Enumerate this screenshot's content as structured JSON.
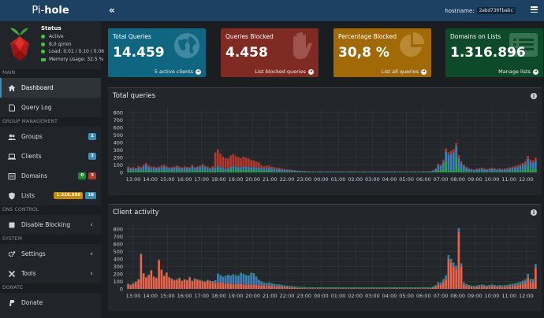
{
  "brand": {
    "prefix": "Pi-",
    "name": "hole"
  },
  "status": {
    "title": "Status",
    "active": "Active",
    "rate": "8,0 q/min",
    "load": "Load: 0.01 / 0.10 / 0.06",
    "memory": "Memory usage: 32.5 %"
  },
  "header": {
    "hostname_label": "hostname:",
    "hostname_value": "2abd730fbabc",
    "toggle_icon": "«"
  },
  "nav": {
    "main_header": "MAIN",
    "dashboard": "Dashboard",
    "query_log": "Query Log",
    "group_header": "GROUP MANAGEMENT",
    "groups": "Groups",
    "groups_badge": "1",
    "clients": "Clients",
    "clients_badge": "3",
    "domains": "Domains",
    "domains_badge_a": "0",
    "domains_badge_b": "3",
    "lists": "Lists",
    "lists_badge_a": "1.316.896",
    "lists_badge_b": "18",
    "dns_header": "DNS CONTROL",
    "disable_blocking": "Disable Blocking",
    "system_header": "SYSTEM",
    "settings": "Settings",
    "tools": "Tools",
    "donate_header": "DONATE",
    "donate": "Donate"
  },
  "tiles": [
    {
      "title": "Total Queries",
      "value": "14.459",
      "link": "5 active clients",
      "color": "#0f6680",
      "icon": "globe-icon"
    },
    {
      "title": "Queries Blocked",
      "value": "4.458",
      "link": "List blocked queries",
      "color": "#7f2a23",
      "icon": "hand-icon"
    },
    {
      "title": "Percentage Blocked",
      "value": "30,8 %",
      "link": "List all queries",
      "color": "#a16a07",
      "icon": "pie-chart-icon"
    },
    {
      "title": "Domains on Lists",
      "value": "1.316.896",
      "link": "Manage lists",
      "color": "#0c4a29",
      "icon": "list-icon"
    }
  ],
  "colors": {
    "green": "#2aa754",
    "blue": "#3d7eb8",
    "red": "#b3382c",
    "orange": "#e8644a",
    "grid": "#34393e"
  },
  "chart_data": [
    {
      "type": "bar",
      "title": "Total queries",
      "stacked": true,
      "yticks": [
        0,
        100,
        200,
        300,
        400,
        500,
        600,
        700,
        800
      ],
      "ylim": [
        0,
        850
      ],
      "xticks": [
        "13:00",
        "14:00",
        "15:00",
        "16:00",
        "17:00",
        "18:00",
        "19:00",
        "20:00",
        "21:00",
        "22:00",
        "23:00",
        "00:00",
        "01:00",
        "02:00",
        "03:00",
        "04:00",
        "05:00",
        "06:00",
        "07:00",
        "08:00",
        "09:00",
        "10:00",
        "11:00",
        "12:00"
      ],
      "series": [
        {
          "values": [
            30,
            25,
            22,
            20,
            28,
            24,
            22,
            30,
            25,
            20,
            22,
            18,
            20,
            25,
            30,
            22,
            18,
            20,
            22,
            25,
            20,
            18,
            22,
            20,
            18,
            30,
            20,
            22,
            25,
            30,
            28,
            25,
            20,
            22,
            35,
            60,
            30,
            25,
            20,
            30,
            40,
            45,
            38,
            36,
            35,
            40,
            38,
            35,
            30,
            32,
            28,
            30,
            25,
            22,
            28,
            26,
            20,
            18,
            15,
            15,
            12,
            12,
            10,
            10,
            8,
            8,
            6,
            6,
            6,
            5,
            5,
            5,
            4,
            4,
            5,
            5,
            4,
            4,
            4,
            5,
            4,
            4,
            4,
            4,
            4,
            4,
            4,
            4,
            4,
            4,
            4,
            4,
            5,
            4,
            4,
            4,
            5,
            4,
            4,
            5,
            4,
            4,
            4,
            4,
            5,
            4,
            4,
            4,
            4,
            5,
            4,
            4,
            5,
            4,
            4,
            5,
            5,
            5,
            6,
            8,
            15,
            35,
            30,
            45,
            150,
            30,
            35,
            30,
            210,
            60,
            30,
            25,
            18,
            14,
            12,
            10,
            12,
            14,
            15,
            12,
            10,
            12,
            14,
            12,
            10,
            12,
            10,
            12,
            14,
            16,
            18,
            20,
            22,
            25,
            30,
            35,
            80,
            45,
            40,
            55
          ]
        },
        {
          "values": [
            30,
            25,
            30,
            25,
            35,
            30,
            60,
            70,
            45,
            40,
            40,
            35,
            40,
            45,
            50,
            40,
            35,
            35,
            40,
            45,
            40,
            35,
            40,
            38,
            35,
            50,
            35,
            40,
            45,
            60,
            40,
            35,
            30,
            40,
            30,
            25,
            40,
            35,
            30,
            25,
            35,
            40,
            38,
            36,
            35,
            40,
            38,
            40,
            35,
            38,
            35,
            35,
            30,
            30,
            32,
            34,
            30,
            30,
            28,
            28,
            24,
            22,
            20,
            20,
            18,
            16,
            14,
            12,
            10,
            10,
            9,
            8,
            8,
            8,
            8,
            8,
            7,
            7,
            7,
            8,
            7,
            7,
            7,
            7,
            7,
            7,
            7,
            7,
            7,
            7,
            7,
            7,
            8,
            7,
            7,
            7,
            8,
            7,
            7,
            8,
            7,
            7,
            7,
            7,
            8,
            7,
            7,
            7,
            7,
            8,
            7,
            7,
            8,
            7,
            7,
            8,
            8,
            8,
            10,
            15,
            30,
            60,
            55,
            90,
            130,
            200,
            210,
            240,
            140,
            130,
            90,
            60,
            40,
            30,
            25,
            20,
            25,
            30,
            35,
            30,
            25,
            30,
            35,
            30,
            25,
            30,
            25,
            28,
            30,
            35,
            40,
            45,
            50,
            60,
            70,
            80,
            100,
            90,
            85,
            100
          ]
        },
        {
          "values": [
            20,
            15,
            18,
            16,
            20,
            18,
            20,
            25,
            20,
            18,
            18,
            16,
            18,
            20,
            22,
            18,
            15,
            16,
            18,
            20,
            18,
            16,
            18,
            17,
            16,
            20,
            16,
            18,
            20,
            22,
            20,
            18,
            15,
            20,
            200,
            220,
            180,
            150,
            140,
            130,
            150,
            160,
            140,
            130,
            120,
            130,
            120,
            110,
            100,
            90,
            80,
            70,
            40,
            30,
            30,
            28,
            25,
            22,
            20,
            18,
            15,
            12,
            10,
            9,
            8,
            7,
            6,
            5,
            4,
            4,
            3,
            3,
            3,
            3,
            3,
            3,
            3,
            3,
            3,
            3,
            3,
            3,
            3,
            3,
            3,
            3,
            3,
            3,
            3,
            3,
            3,
            3,
            3,
            3,
            3,
            3,
            3,
            3,
            3,
            3,
            3,
            3,
            3,
            3,
            3,
            3,
            3,
            3,
            3,
            3,
            3,
            3,
            3,
            3,
            3,
            3,
            3,
            3,
            4,
            6,
            10,
            20,
            20,
            30,
            40,
            40,
            40,
            40,
            40,
            40,
            30,
            20,
            15,
            12,
            10,
            8,
            10,
            12,
            14,
            12,
            10,
            12,
            14,
            12,
            10,
            12,
            10,
            12,
            14,
            16,
            18,
            20,
            22,
            25,
            30,
            35,
            40,
            35,
            35,
            40
          ]
        }
      ]
    },
    {
      "type": "bar",
      "title": "Client activity",
      "stacked": true,
      "yticks": [
        0,
        100,
        200,
        300,
        400,
        500,
        600,
        700,
        800
      ],
      "ylim": [
        0,
        850
      ],
      "xticks": [
        "13:00",
        "14:00",
        "15:00",
        "16:00",
        "17:00",
        "18:00",
        "19:00",
        "20:00",
        "21:00",
        "22:00",
        "23:00",
        "00:00",
        "01:00",
        "02:00",
        "03:00",
        "04:00",
        "05:00",
        "06:00",
        "07:00",
        "08:00",
        "09:00",
        "10:00",
        "11:00",
        "12:00"
      ],
      "series": [
        {
          "values": [
            60,
            50,
            70,
            90,
            120,
            460,
            200,
            150,
            180,
            240,
            160,
            140,
            380,
            250,
            170,
            210,
            150,
            130,
            110,
            120,
            140,
            100,
            120,
            110,
            150,
            100,
            130,
            120,
            110,
            100,
            90,
            110,
            100,
            90,
            80,
            80,
            90,
            80,
            70,
            75,
            70,
            65,
            60,
            70,
            65,
            60,
            55,
            60,
            55,
            60,
            55,
            50,
            50,
            45,
            40,
            45,
            40,
            35,
            30,
            30,
            28,
            25,
            22,
            20,
            18,
            16,
            14,
            12,
            10,
            10,
            9,
            8,
            8,
            8,
            8,
            8,
            7,
            7,
            7,
            8,
            7,
            7,
            7,
            7,
            7,
            7,
            7,
            7,
            7,
            7,
            7,
            7,
            8,
            7,
            7,
            7,
            8,
            7,
            7,
            8,
            7,
            7,
            7,
            7,
            8,
            7,
            7,
            7,
            7,
            8,
            7,
            7,
            8,
            7,
            7,
            8,
            8,
            8,
            10,
            15,
            30,
            60,
            55,
            90,
            130,
            400,
            350,
            300,
            260,
            760,
            300,
            60,
            40,
            30,
            25,
            20,
            25,
            30,
            35,
            30,
            25,
            30,
            35,
            30,
            25,
            30,
            25,
            28,
            30,
            35,
            40,
            45,
            50,
            60,
            70,
            80,
            150,
            90,
            85,
            280
          ]
        },
        {
          "values": [
            5,
            5,
            5,
            5,
            5,
            5,
            5,
            5,
            5,
            5,
            5,
            5,
            5,
            5,
            5,
            5,
            5,
            5,
            5,
            5,
            5,
            5,
            5,
            5,
            5,
            5,
            5,
            5,
            5,
            5,
            5,
            5,
            5,
            10,
            30,
            120,
            90,
            80,
            100,
            110,
            100,
            120,
            110,
            100,
            140,
            130,
            120,
            110,
            150,
            140,
            100,
            60,
            40,
            30,
            30,
            28,
            25,
            22,
            20,
            18,
            15,
            12,
            10,
            9,
            8,
            7,
            6,
            5,
            4,
            4,
            3,
            3,
            3,
            3,
            3,
            3,
            3,
            3,
            3,
            3,
            3,
            3,
            3,
            3,
            3,
            3,
            3,
            3,
            3,
            3,
            3,
            3,
            3,
            3,
            3,
            3,
            3,
            3,
            3,
            3,
            3,
            3,
            3,
            3,
            3,
            3,
            3,
            3,
            3,
            3,
            3,
            3,
            3,
            3,
            3,
            3,
            3,
            3,
            4,
            6,
            10,
            20,
            20,
            30,
            40,
            40,
            40,
            40,
            40,
            40,
            30,
            20,
            15,
            12,
            10,
            8,
            10,
            12,
            14,
            12,
            10,
            12,
            14,
            12,
            10,
            12,
            10,
            12,
            14,
            16,
            18,
            20,
            22,
            25,
            30,
            35,
            40,
            35,
            35,
            40
          ]
        },
        {
          "values": [
            5,
            5,
            5,
            5,
            5,
            5,
            5,
            5,
            5,
            5,
            5,
            5,
            5,
            5,
            5,
            5,
            5,
            5,
            5,
            5,
            5,
            5,
            5,
            5,
            5,
            5,
            5,
            5,
            5,
            5,
            5,
            5,
            5,
            5,
            5,
            5,
            5,
            5,
            5,
            5,
            10,
            10,
            10,
            10,
            10,
            10,
            10,
            10,
            10,
            10,
            10,
            10,
            10,
            10,
            10,
            10,
            10,
            10,
            10,
            10,
            10,
            10,
            10,
            10,
            10,
            10,
            10,
            10,
            10,
            10,
            10,
            10,
            10,
            10,
            10,
            10,
            10,
            10,
            10,
            10,
            10,
            10,
            10,
            10,
            10,
            10,
            10,
            10,
            10,
            10,
            10,
            10,
            10,
            10,
            10,
            10,
            10,
            10,
            10,
            10,
            10,
            10,
            10,
            10,
            10,
            10,
            10,
            10,
            10,
            10,
            10,
            10,
            10,
            10,
            10,
            10,
            10,
            10,
            10,
            10,
            10,
            10,
            10,
            10,
            10,
            10,
            10,
            10,
            10,
            10,
            10,
            10,
            10,
            10,
            10,
            10,
            10,
            10,
            10,
            10,
            10,
            10,
            10,
            10,
            10,
            10,
            10,
            10,
            10,
            10,
            10,
            10,
            10,
            10,
            10,
            10,
            10,
            10,
            10,
            10
          ]
        }
      ]
    }
  ]
}
